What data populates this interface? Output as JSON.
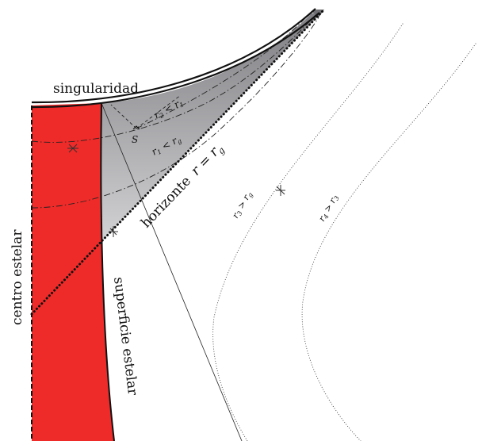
{
  "labels": {
    "singularity": "singularidad",
    "horizon_text": "horizonte",
    "horizon_eq": "r = r",
    "horizon_sub": "g",
    "star_center": "centro estelar",
    "star_surface": "superficie estelar",
    "event_s": "S",
    "ineq_r2": "r",
    "ineq_r2_sub": "2",
    "ineq_r2_op": " < r",
    "ineq_r2_rhs_sub": "1",
    "ineq_r1": "r",
    "ineq_r1_sub": "1",
    "ineq_r1_op": " < r",
    "ineq_r1_rhs_sub": "g",
    "ineq_r3": "r",
    "ineq_r3_sub": "3",
    "ineq_r3_op": " > r",
    "ineq_r3_rhs_sub": "g",
    "ineq_r4": "r",
    "ineq_r4_sub": "4",
    "ineq_r4_op": " > r",
    "ineq_r4_rhs_sub": "3"
  },
  "colors": {
    "star_interior": "#ee2b29",
    "trapped_region_top": "#8c8c8f",
    "trapped_region_bottom": "#e2e2e4",
    "line": "#111111"
  }
}
